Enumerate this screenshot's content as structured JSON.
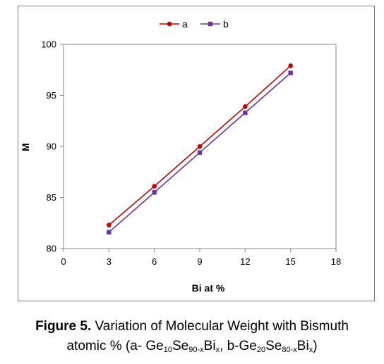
{
  "chart_data": {
    "type": "line",
    "title": "",
    "xlabel": "Bi at %",
    "ylabel": "M",
    "xlim": [
      0,
      18
    ],
    "ylim": [
      80,
      100
    ],
    "xticks": [
      0,
      3,
      6,
      9,
      12,
      15,
      18
    ],
    "yticks": [
      80,
      85,
      90,
      95,
      100
    ],
    "grid": false,
    "legend_position": "top-center",
    "x": [
      3,
      6,
      9,
      12,
      15
    ],
    "series": [
      {
        "name": "a",
        "values": [
          82.3,
          86.1,
          90.0,
          93.9,
          97.9
        ],
        "color": "#c00000",
        "marker": "circle"
      },
      {
        "name": "b",
        "values": [
          81.6,
          85.5,
          89.4,
          93.3,
          97.2
        ],
        "color": "#7030a0",
        "marker": "square"
      }
    ]
  },
  "caption": {
    "label": "Figure 5.",
    "line1_text": " Variation of Molecular Weight with Bismuth",
    "l2_prefix": "atomic % (a- Ge",
    "l2_sub1": "10",
    "l2_t2": "Se",
    "l2_sub2": "90-x",
    "l2_t3": "Bi",
    "l2_sub3": "x",
    "l2_t4": ", b-Ge",
    "l2_sub4": "20",
    "l2_t5": "Se",
    "l2_sub5": "80-x",
    "l2_t6": "Bi",
    "l2_sub6": "x",
    "l2_t7": ")"
  }
}
